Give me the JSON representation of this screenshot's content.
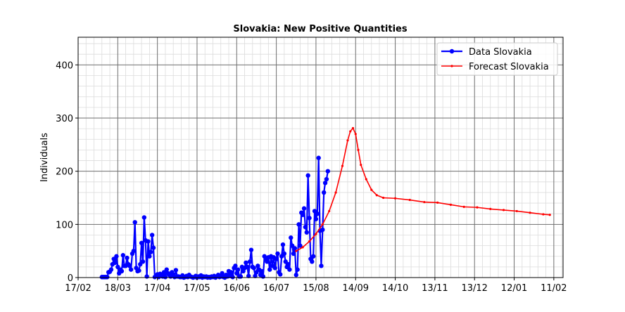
{
  "chart_data": {
    "type": "line",
    "title": "Slovakia: New Positive Quantities",
    "xlabel": "",
    "ylabel": "Individuals",
    "ylim": [
      0,
      452
    ],
    "yticks": [
      0,
      100,
      200,
      300,
      400
    ],
    "xticks": [
      {
        "date": "2020-02-17",
        "label": "17/02"
      },
      {
        "date": "2020-03-18",
        "label": "18/03"
      },
      {
        "date": "2020-04-17",
        "label": "17/04"
      },
      {
        "date": "2020-05-17",
        "label": "17/05"
      },
      {
        "date": "2020-06-16",
        "label": "16/06"
      },
      {
        "date": "2020-07-16",
        "label": "16/07"
      },
      {
        "date": "2020-08-15",
        "label": "15/08"
      },
      {
        "date": "2020-09-14",
        "label": "14/09"
      },
      {
        "date": "2020-10-14",
        "label": "14/10"
      },
      {
        "date": "2020-11-13",
        "label": "13/11"
      },
      {
        "date": "2020-12-13",
        "label": "13/12"
      },
      {
        "date": "2021-01-12",
        "label": "12/01"
      },
      {
        "date": "2021-02-11",
        "label": "11/02"
      }
    ],
    "xlim": [
      "2020-02-17",
      "2021-02-18"
    ],
    "grid": true,
    "legend_position": "top-right",
    "series": [
      {
        "name": "Data Slovakia",
        "color": "#0000ff",
        "marker": "circle",
        "points": [
          [
            "2020-03-06",
            1
          ],
          [
            "2020-03-07",
            1
          ],
          [
            "2020-03-08",
            1
          ],
          [
            "2020-03-09",
            1
          ],
          [
            "2020-03-10",
            1
          ],
          [
            "2020-03-11",
            10
          ],
          [
            "2020-03-12",
            11
          ],
          [
            "2020-03-13",
            15
          ],
          [
            "2020-03-14",
            25
          ],
          [
            "2020-03-15",
            35
          ],
          [
            "2020-03-16",
            28
          ],
          [
            "2020-03-17",
            40
          ],
          [
            "2020-03-18",
            20
          ],
          [
            "2020-03-19",
            8
          ],
          [
            "2020-03-20",
            15
          ],
          [
            "2020-03-21",
            12
          ],
          [
            "2020-03-22",
            42
          ],
          [
            "2020-03-23",
            22
          ],
          [
            "2020-03-24",
            22
          ],
          [
            "2020-03-25",
            37
          ],
          [
            "2020-03-26",
            25
          ],
          [
            "2020-03-27",
            22
          ],
          [
            "2020-03-28",
            15
          ],
          [
            "2020-03-29",
            45
          ],
          [
            "2020-03-30",
            50
          ],
          [
            "2020-03-31",
            104
          ],
          [
            "2020-04-01",
            18
          ],
          [
            "2020-04-02",
            12
          ],
          [
            "2020-04-03",
            13
          ],
          [
            "2020-04-04",
            25
          ],
          [
            "2020-04-05",
            65
          ],
          [
            "2020-04-06",
            30
          ],
          [
            "2020-04-07",
            113
          ],
          [
            "2020-04-08",
            70
          ],
          [
            "2020-04-09",
            2
          ],
          [
            "2020-04-10",
            68
          ],
          [
            "2020-04-11",
            40
          ],
          [
            "2020-04-12",
            48
          ],
          [
            "2020-04-13",
            80
          ],
          [
            "2020-04-14",
            56
          ],
          [
            "2020-04-15",
            1
          ],
          [
            "2020-04-16",
            3
          ],
          [
            "2020-04-17",
            6
          ],
          [
            "2020-04-18",
            1
          ],
          [
            "2020-04-19",
            7
          ],
          [
            "2020-04-20",
            6
          ],
          [
            "2020-04-21",
            2
          ],
          [
            "2020-04-22",
            10
          ],
          [
            "2020-04-23",
            1
          ],
          [
            "2020-04-24",
            15
          ],
          [
            "2020-04-25",
            8
          ],
          [
            "2020-04-26",
            5
          ],
          [
            "2020-04-27",
            2
          ],
          [
            "2020-04-28",
            10
          ],
          [
            "2020-04-29",
            6
          ],
          [
            "2020-04-30",
            1
          ],
          [
            "2020-05-01",
            14
          ],
          [
            "2020-05-02",
            2
          ],
          [
            "2020-05-03",
            2
          ],
          [
            "2020-05-04",
            1
          ],
          [
            "2020-05-05",
            1
          ],
          [
            "2020-05-06",
            4
          ],
          [
            "2020-05-07",
            0
          ],
          [
            "2020-05-08",
            1
          ],
          [
            "2020-05-09",
            3
          ],
          [
            "2020-05-10",
            1
          ],
          [
            "2020-05-11",
            5
          ],
          [
            "2020-05-12",
            2
          ],
          [
            "2020-05-13",
            1
          ],
          [
            "2020-05-14",
            0
          ],
          [
            "2020-05-15",
            1
          ],
          [
            "2020-05-16",
            3
          ],
          [
            "2020-05-17",
            0
          ],
          [
            "2020-05-18",
            2
          ],
          [
            "2020-05-19",
            1
          ],
          [
            "2020-05-20",
            4
          ],
          [
            "2020-05-21",
            0
          ],
          [
            "2020-05-22",
            2
          ],
          [
            "2020-05-23",
            1
          ],
          [
            "2020-05-24",
            2
          ],
          [
            "2020-05-25",
            0
          ],
          [
            "2020-05-26",
            1
          ],
          [
            "2020-05-27",
            0
          ],
          [
            "2020-05-28",
            2
          ],
          [
            "2020-05-29",
            1
          ],
          [
            "2020-05-30",
            3
          ],
          [
            "2020-05-31",
            0
          ],
          [
            "2020-06-01",
            2
          ],
          [
            "2020-06-02",
            5
          ],
          [
            "2020-06-03",
            1
          ],
          [
            "2020-06-04",
            2
          ],
          [
            "2020-06-05",
            8
          ],
          [
            "2020-06-06",
            1
          ],
          [
            "2020-06-07",
            0
          ],
          [
            "2020-06-08",
            5
          ],
          [
            "2020-06-09",
            2
          ],
          [
            "2020-06-10",
            12
          ],
          [
            "2020-06-11",
            3
          ],
          [
            "2020-06-12",
            10
          ],
          [
            "2020-06-13",
            1
          ],
          [
            "2020-06-14",
            18
          ],
          [
            "2020-06-15",
            22
          ],
          [
            "2020-06-16",
            8
          ],
          [
            "2020-06-17",
            15
          ],
          [
            "2020-06-18",
            2
          ],
          [
            "2020-06-19",
            2
          ],
          [
            "2020-06-20",
            20
          ],
          [
            "2020-06-21",
            12
          ],
          [
            "2020-06-22",
            18
          ],
          [
            "2020-06-23",
            28
          ],
          [
            "2020-06-24",
            20
          ],
          [
            "2020-06-25",
            3
          ],
          [
            "2020-06-26",
            30
          ],
          [
            "2020-06-27",
            52
          ],
          [
            "2020-06-28",
            20
          ],
          [
            "2020-06-29",
            18
          ],
          [
            "2020-06-30",
            3
          ],
          [
            "2020-07-01",
            10
          ],
          [
            "2020-07-02",
            22
          ],
          [
            "2020-07-03",
            15
          ],
          [
            "2020-07-04",
            5
          ],
          [
            "2020-07-05",
            12
          ],
          [
            "2020-07-06",
            2
          ],
          [
            "2020-07-07",
            40
          ],
          [
            "2020-07-08",
            35
          ],
          [
            "2020-07-09",
            30
          ],
          [
            "2020-07-10",
            38
          ],
          [
            "2020-07-11",
            15
          ],
          [
            "2020-07-12",
            40
          ],
          [
            "2020-07-13",
            22
          ],
          [
            "2020-07-14",
            38
          ],
          [
            "2020-07-15",
            18
          ],
          [
            "2020-07-16",
            35
          ],
          [
            "2020-07-17",
            45
          ],
          [
            "2020-07-18",
            10
          ],
          [
            "2020-07-19",
            6
          ],
          [
            "2020-07-20",
            40
          ],
          [
            "2020-07-21",
            62
          ],
          [
            "2020-07-22",
            45
          ],
          [
            "2020-07-23",
            30
          ],
          [
            "2020-07-24",
            20
          ],
          [
            "2020-07-25",
            25
          ],
          [
            "2020-07-26",
            15
          ],
          [
            "2020-07-27",
            75
          ],
          [
            "2020-07-28",
            60
          ],
          [
            "2020-07-29",
            45
          ],
          [
            "2020-07-30",
            55
          ],
          [
            "2020-07-31",
            5
          ],
          [
            "2020-08-01",
            15
          ],
          [
            "2020-08-02",
            100
          ],
          [
            "2020-08-03",
            60
          ],
          [
            "2020-08-04",
            122
          ],
          [
            "2020-08-05",
            118
          ],
          [
            "2020-08-06",
            130
          ],
          [
            "2020-08-07",
            95
          ],
          [
            "2020-08-08",
            85
          ],
          [
            "2020-08-09",
            192
          ],
          [
            "2020-08-10",
            112
          ],
          [
            "2020-08-11",
            35
          ],
          [
            "2020-08-12",
            30
          ],
          [
            "2020-08-13",
            40
          ],
          [
            "2020-08-14",
            125
          ],
          [
            "2020-08-15",
            110
          ],
          [
            "2020-08-16",
            120
          ],
          [
            "2020-08-17",
            225
          ],
          [
            "2020-08-18",
            88
          ],
          [
            "2020-08-19",
            22
          ],
          [
            "2020-08-20",
            90
          ],
          [
            "2020-08-21",
            160
          ],
          [
            "2020-08-22",
            178
          ],
          [
            "2020-08-23",
            185
          ],
          [
            "2020-08-24",
            200
          ]
        ]
      },
      {
        "name": "Forecast Slovakia",
        "color": "#ff0000",
        "marker": "dot",
        "points": [
          [
            "2020-07-31",
            50
          ],
          [
            "2020-08-05",
            57
          ],
          [
            "2020-08-10",
            68
          ],
          [
            "2020-08-15",
            82
          ],
          [
            "2020-08-20",
            100
          ],
          [
            "2020-08-25",
            125
          ],
          [
            "2020-08-30",
            160
          ],
          [
            "2020-09-04",
            210
          ],
          [
            "2020-09-08",
            258
          ],
          [
            "2020-09-10",
            275
          ],
          [
            "2020-09-12",
            281
          ],
          [
            "2020-09-14",
            270
          ],
          [
            "2020-09-16",
            240
          ],
          [
            "2020-09-18",
            212
          ],
          [
            "2020-09-22",
            185
          ],
          [
            "2020-09-26",
            165
          ],
          [
            "2020-09-30",
            155
          ],
          [
            "2020-10-05",
            150
          ],
          [
            "2020-10-14",
            149
          ],
          [
            "2020-10-25",
            146
          ],
          [
            "2020-11-05",
            142
          ],
          [
            "2020-11-15",
            141
          ],
          [
            "2020-11-25",
            137
          ],
          [
            "2020-12-05",
            133
          ],
          [
            "2020-12-15",
            132
          ],
          [
            "2020-12-25",
            129
          ],
          [
            "2021-01-04",
            127
          ],
          [
            "2021-01-14",
            125
          ],
          [
            "2021-01-24",
            122
          ],
          [
            "2021-02-03",
            119
          ],
          [
            "2021-02-08",
            118
          ]
        ]
      }
    ]
  }
}
